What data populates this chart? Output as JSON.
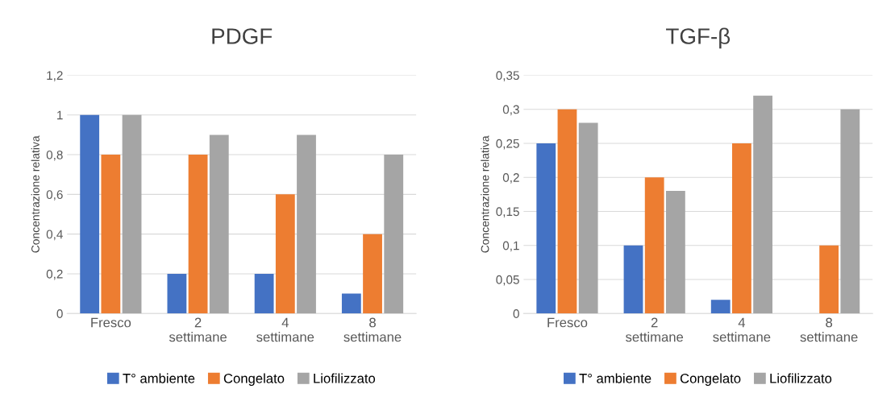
{
  "chart_data": [
    {
      "type": "bar",
      "title": "PDGF",
      "ylabel": "Concentrazione relativa",
      "categories": [
        "Fresco",
        "2\nsettimane",
        "4\nsettimane",
        "8\nsettimane"
      ],
      "series": [
        {
          "name": "T° ambiente",
          "color": "#4472c4",
          "values": [
            1,
            0.2,
            0.2,
            0.1
          ]
        },
        {
          "name": "Congelato",
          "color": "#ed7d31",
          "values": [
            0.8,
            0.8,
            0.6,
            0.4
          ]
        },
        {
          "name": "Liofilizzato",
          "color": "#a5a5a5",
          "values": [
            1,
            0.9,
            0.9,
            0.8
          ]
        }
      ],
      "ylim": [
        0,
        1.2
      ],
      "yticks": [
        0,
        {
          "value": 0.2,
          "label": "0,2"
        },
        {
          "value": 0.4,
          "label": "0,4"
        },
        {
          "value": 0.6,
          "label": "0,6"
        },
        {
          "value": 0.8,
          "label": "0,8"
        },
        1,
        {
          "value": 1.2,
          "label": "1,2"
        }
      ],
      "grid": "y",
      "legend": "bottom"
    },
    {
      "type": "bar",
      "title": "TGF-β",
      "ylabel": "Concentrazione relativa",
      "categories": [
        "Fresco",
        "2\nsettimane",
        "4\nsettimane",
        "8\nsettimane"
      ],
      "series": [
        {
          "name": "T° ambiente",
          "color": "#4472c4",
          "values": [
            0.25,
            0.1,
            0.02,
            0
          ]
        },
        {
          "name": "Congelato",
          "color": "#ed7d31",
          "values": [
            0.3,
            0.2,
            0.25,
            0.1
          ]
        },
        {
          "name": "Liofilizzato",
          "color": "#a5a5a5",
          "values": [
            0.28,
            0.18,
            0.32,
            0.3
          ]
        }
      ],
      "ylim": [
        0,
        0.35
      ],
      "yticks": [
        0,
        {
          "value": 0.05,
          "label": "0,05"
        },
        {
          "value": 0.1,
          "label": "0,1"
        },
        {
          "value": 0.15,
          "label": "0,15"
        },
        {
          "value": 0.2,
          "label": "0,2"
        },
        {
          "value": 0.25,
          "label": "0,25"
        },
        {
          "value": 0.3,
          "label": "0,3"
        },
        {
          "value": 0.35,
          "label": "0,35"
        }
      ],
      "grid": "y",
      "legend": "bottom"
    }
  ]
}
